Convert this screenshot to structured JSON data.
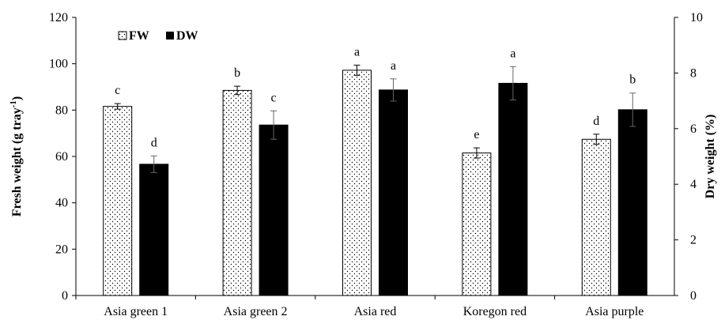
{
  "chart_data": {
    "type": "bar",
    "categories": [
      "Asia green 1",
      "Asia green 2",
      "Asia red",
      "Koregon red",
      "Asia purple"
    ],
    "series": [
      {
        "name": "FW",
        "axis": "left",
        "color": "#ffffff",
        "pattern": "dotted",
        "values": [
          81.6,
          88.5,
          97.2,
          61.5,
          67.4
        ],
        "error": [
          1.2,
          1.8,
          2.2,
          2.2,
          2.2
        ],
        "letters": [
          "c",
          "b",
          "a",
          "e",
          "d"
        ]
      },
      {
        "name": "DW",
        "axis": "right",
        "color": "#000000",
        "values": [
          4.72,
          6.13,
          7.39,
          7.63,
          6.68
        ],
        "error": [
          0.3,
          0.51,
          0.4,
          0.6,
          0.6
        ],
        "letters": [
          "d",
          "c",
          "a",
          "a",
          "b"
        ]
      }
    ],
    "y_left": {
      "label": "Fresh weight (g tray",
      "label_sup": "-1",
      "label_end": ")",
      "lim": [
        0,
        120
      ],
      "ticks": [
        0,
        20,
        40,
        60,
        80,
        100,
        120
      ]
    },
    "y_right": {
      "label": "Dry weight (%)",
      "lim": [
        0,
        10
      ],
      "ticks": [
        0,
        2,
        4,
        6,
        8,
        10
      ]
    },
    "legend": {
      "position": "top-left",
      "items": [
        "FW",
        "DW"
      ]
    },
    "grid": false
  }
}
